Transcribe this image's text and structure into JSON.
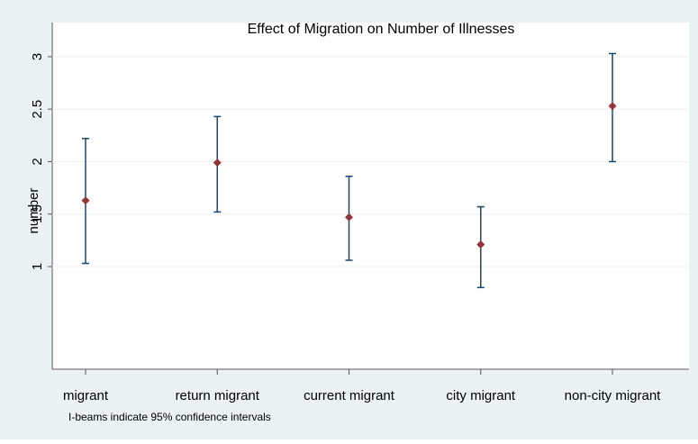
{
  "chart_data": {
    "type": "errorbar",
    "title": "Effect of Migration on Number of Illnesses",
    "y_label": "number",
    "note": "I-beams indicate 95% confidence intervals",
    "categories": [
      "migrant",
      "return migrant",
      "current migrant",
      "city migrant",
      "non-city migrant"
    ],
    "values": [
      1.63,
      1.99,
      1.47,
      1.21,
      2.53
    ],
    "lower": [
      1.03,
      1.52,
      1.06,
      0.8,
      2.0
    ],
    "upper": [
      2.22,
      2.43,
      1.86,
      1.57,
      3.03
    ],
    "point_color": "#90353b",
    "bar_color": "#1a476f",
    "ylim": [
      0,
      3.3
    ],
    "yticks": [
      1,
      1.5,
      2,
      2.5,
      3
    ],
    "grid": true
  }
}
